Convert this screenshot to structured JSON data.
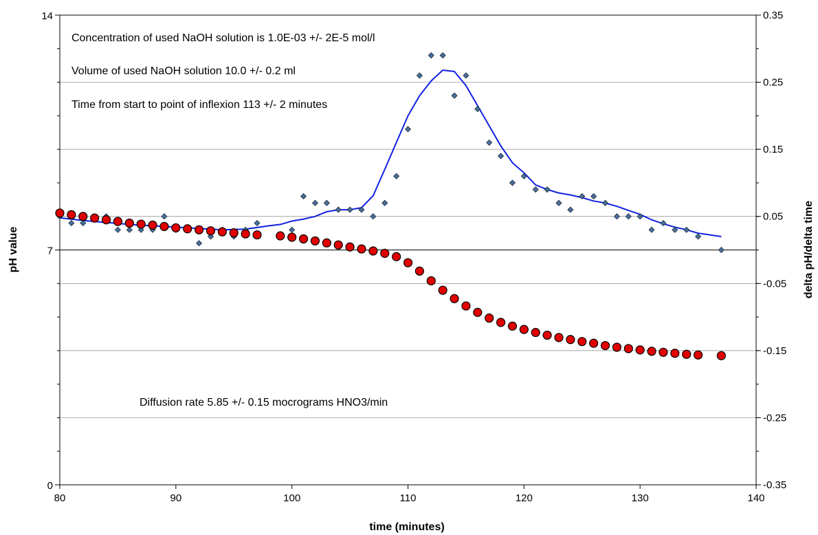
{
  "chart_data": {
    "type": "scatter",
    "title": "",
    "xlabel": "time (minutes)",
    "ylabel_left": "pH value",
    "ylabel_right": "delta pH/delta time",
    "xlim": [
      80,
      140
    ],
    "ylim_left": [
      0,
      14
    ],
    "ylim_right": [
      -0.35,
      0.35
    ],
    "x_ticks": [
      "80",
      "90",
      "100",
      "110",
      "120",
      "130",
      "140"
    ],
    "y_left_ticks": [
      "0",
      "7",
      "14"
    ],
    "y_right_ticks": [
      "-0.35",
      "-0.25",
      "-0.15",
      "-0.05",
      "0.05",
      "0.15",
      "0.25",
      "0.35"
    ],
    "grid": "horizontal",
    "annotations": [
      "Concentration of used NaOH solution is 1.0E-03 +/- 2E-5 mol/l",
      "Volume of used NaOH solution 10.0 +/- 0.2 ml",
      "Time from start to point of inflexion 113 +/- 2 minutes",
      "Diffusion rate  5.85 +/- 0.15 mocrograms HNO3/min"
    ],
    "colors": {
      "ph_marker": "#e00000",
      "derivative_marker": "#4a6f9c",
      "moving_average_line": "#1020e0",
      "gridline": "#888888",
      "ref_line": "#000000"
    },
    "series": [
      {
        "axis": "left",
        "marker": "circle",
        "x": [
          80,
          81,
          82,
          83,
          84,
          85,
          86,
          87,
          88,
          89,
          90,
          91,
          92,
          93,
          94,
          95,
          96,
          97,
          99,
          100,
          101,
          102,
          103,
          104,
          105,
          106,
          107,
          108,
          109,
          110,
          111,
          112,
          113,
          114,
          115,
          116,
          117,
          118,
          119,
          120,
          121,
          122,
          123,
          124,
          125,
          126,
          127,
          128,
          129,
          130,
          131,
          132,
          133,
          134,
          135,
          137
        ],
        "y": [
          8.1,
          8.05,
          8.0,
          7.95,
          7.9,
          7.85,
          7.8,
          7.77,
          7.74,
          7.7,
          7.66,
          7.63,
          7.6,
          7.57,
          7.54,
          7.51,
          7.48,
          7.45,
          7.42,
          7.38,
          7.33,
          7.27,
          7.21,
          7.15,
          7.09,
          7.03,
          6.97,
          6.9,
          6.8,
          6.62,
          6.37,
          6.08,
          5.8,
          5.55,
          5.33,
          5.14,
          4.97,
          4.84,
          4.73,
          4.63,
          4.54,
          4.46,
          4.39,
          4.33,
          4.27,
          4.22,
          4.15,
          4.1,
          4.06,
          4.02,
          3.98,
          3.95,
          3.92,
          3.89,
          3.87,
          3.85
        ]
      },
      {
        "axis": "right",
        "marker": "diamond",
        "x": [
          80,
          81,
          82,
          83,
          84,
          85,
          86,
          87,
          88,
          89,
          90,
          91,
          92,
          93,
          94,
          95,
          96,
          97,
          99,
          100,
          101,
          102,
          103,
          104,
          105,
          106,
          107,
          108,
          109,
          110,
          111,
          112,
          113,
          114,
          115,
          116,
          117,
          118,
          119,
          120,
          121,
          122,
          123,
          124,
          125,
          126,
          127,
          128,
          129,
          130,
          131,
          132,
          133,
          134,
          135,
          137
        ],
        "y": [
          0.05,
          0.04,
          0.04,
          0.05,
          0.05,
          0.03,
          0.03,
          0.03,
          0.03,
          0.05,
          0.03,
          0.03,
          0.01,
          0.02,
          0.03,
          0.02,
          0.03,
          0.04,
          0.02,
          0.03,
          0.08,
          0.07,
          0.07,
          0.06,
          0.06,
          0.06,
          0.05,
          0.07,
          0.11,
          0.18,
          0.26,
          0.29,
          0.29,
          0.23,
          0.26,
          0.21,
          0.16,
          0.14,
          0.1,
          0.11,
          0.09,
          0.09,
          0.07,
          0.06,
          0.08,
          0.08,
          0.07,
          0.05,
          0.05,
          0.05,
          0.03,
          0.04,
          0.03,
          0.03,
          0.02,
          0.0
        ]
      },
      {
        "axis": "right",
        "marker": "line",
        "x": [
          80,
          82,
          84,
          86,
          88,
          90,
          92,
          94,
          96,
          98,
          99,
          100,
          101,
          102,
          103,
          104,
          105,
          106,
          107,
          108,
          109,
          110,
          111,
          112,
          113,
          114,
          115,
          116,
          117,
          118,
          119,
          120,
          121,
          122,
          123,
          124,
          125,
          126,
          127,
          128,
          129,
          130,
          131,
          132,
          133,
          134,
          135,
          137
        ],
        "y": [
          0.048,
          0.044,
          0.041,
          0.038,
          0.036,
          0.034,
          0.032,
          0.03,
          0.031,
          0.036,
          0.038,
          0.043,
          0.046,
          0.05,
          0.057,
          0.06,
          0.06,
          0.063,
          0.081,
          0.12,
          0.16,
          0.2,
          0.23,
          0.252,
          0.268,
          0.266,
          0.245,
          0.215,
          0.185,
          0.155,
          0.13,
          0.115,
          0.097,
          0.09,
          0.085,
          0.082,
          0.078,
          0.073,
          0.07,
          0.065,
          0.059,
          0.053,
          0.045,
          0.039,
          0.034,
          0.03,
          0.025,
          0.02
        ]
      }
    ]
  }
}
